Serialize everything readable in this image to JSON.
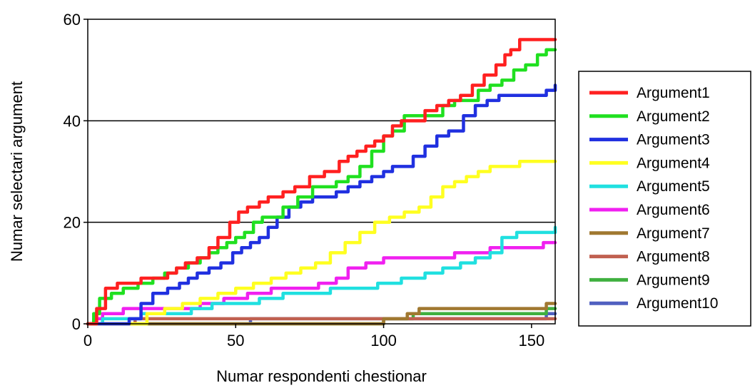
{
  "chart_data": {
    "type": "line",
    "xlabel": "Numar respondenti chestionar",
    "ylabel": "Numar selectari argument",
    "xlim": [
      0,
      158
    ],
    "ylim": [
      0,
      60
    ],
    "xticks": [
      0,
      50,
      100,
      150
    ],
    "yticks": [
      0,
      20,
      40,
      60
    ],
    "grid": "horizontal",
    "legend_position": "right",
    "series": [
      {
        "name": "Argument1",
        "color": "#ff2020",
        "x": [
          0,
          3,
          6,
          10,
          13,
          18,
          25,
          27,
          30,
          33,
          37,
          41,
          44,
          48,
          51,
          54,
          58,
          61,
          66,
          70,
          75,
          80,
          85,
          88,
          91,
          94,
          97,
          100,
          103,
          106,
          110,
          114,
          118,
          122,
          126,
          130,
          134,
          138,
          141,
          143,
          146,
          158
        ],
        "y": [
          0,
          3,
          7,
          8,
          8,
          9,
          9,
          10,
          11,
          12,
          13,
          15,
          17,
          20,
          22,
          23,
          24,
          25,
          26,
          27,
          29,
          30,
          32,
          33,
          34,
          35,
          36,
          37,
          39,
          40,
          40,
          42,
          43,
          44,
          45,
          47,
          49,
          51,
          53,
          54,
          56,
          56
        ]
      },
      {
        "name": "Argument2",
        "color": "#20e020",
        "x": [
          0,
          2,
          4,
          8,
          12,
          17,
          22,
          26,
          30,
          34,
          38,
          41,
          44,
          47,
          50,
          53,
          56,
          59,
          62,
          66,
          71,
          76,
          80,
          84,
          88,
          92,
          96,
          100,
          103,
          107,
          112,
          116,
          120,
          124,
          128,
          132,
          136,
          140,
          144,
          148,
          152,
          155,
          158
        ],
        "y": [
          0,
          2,
          5,
          6,
          7,
          8,
          9,
          10,
          11,
          12,
          13,
          14,
          15,
          16,
          17,
          18,
          20,
          21,
          21,
          23,
          25,
          27,
          27,
          28,
          29,
          31,
          34,
          37,
          38,
          41,
          41,
          41,
          43,
          44,
          44,
          46,
          47,
          48,
          50,
          51,
          53,
          54,
          54
        ]
      },
      {
        "name": "Argument3",
        "color": "#2030e0",
        "x": [
          0,
          10,
          14,
          18,
          22,
          27,
          31,
          34,
          37,
          41,
          45,
          49,
          52,
          55,
          58,
          61,
          64,
          68,
          72,
          76,
          80,
          84,
          88,
          92,
          96,
          100,
          103,
          106,
          110,
          114,
          118,
          122,
          127,
          131,
          135,
          139,
          143,
          147,
          151,
          155,
          158
        ],
        "y": [
          0,
          0,
          1,
          4,
          6,
          7,
          8,
          9,
          10,
          11,
          12,
          14,
          15,
          16,
          17,
          19,
          21,
          23,
          24,
          25,
          25,
          26,
          27,
          28,
          29,
          30,
          31,
          31,
          33,
          35,
          37,
          38,
          41,
          43,
          44,
          45,
          45,
          45,
          45,
          46,
          47
        ]
      },
      {
        "name": "Argument4",
        "color": "#ffff20",
        "x": [
          0,
          10,
          20,
          26,
          32,
          38,
          44,
          50,
          56,
          62,
          67,
          72,
          77,
          82,
          87,
          92,
          97,
          102,
          107,
          112,
          116,
          120,
          124,
          128,
          132,
          136,
          140,
          146,
          152,
          158
        ],
        "y": [
          0,
          0,
          2,
          3,
          4,
          5,
          6,
          7,
          8,
          9,
          10,
          11,
          12,
          14,
          16,
          18,
          20,
          21,
          22,
          23,
          25,
          27,
          28,
          29,
          30,
          31,
          31,
          32,
          32,
          32
        ]
      },
      {
        "name": "Argument5",
        "color": "#20e0e0",
        "x": [
          0,
          5,
          10,
          18,
          26,
          35,
          42,
          50,
          58,
          66,
          74,
          82,
          90,
          98,
          106,
          114,
          120,
          126,
          131,
          136,
          140,
          145,
          150,
          155,
          158
        ],
        "y": [
          0,
          1,
          1,
          2,
          2,
          3,
          4,
          4,
          5,
          6,
          6,
          7,
          7,
          8,
          9,
          10,
          11,
          12,
          13,
          14,
          17,
          18,
          18,
          18,
          19
        ]
      },
      {
        "name": "Argument6",
        "color": "#f020f0",
        "x": [
          0,
          2,
          5,
          12,
          20,
          30,
          38,
          46,
          54,
          62,
          70,
          78,
          84,
          88,
          94,
          100,
          106,
          112,
          118,
          124,
          130,
          136,
          142,
          148,
          154,
          158
        ],
        "y": [
          0,
          1,
          2,
          3,
          3,
          3,
          4,
          5,
          6,
          7,
          7,
          8,
          9,
          11,
          12,
          13,
          13,
          13,
          13,
          14,
          14,
          15,
          15,
          15,
          16,
          16
        ]
      },
      {
        "name": "Argument7",
        "color": "#a07830",
        "x": [
          0,
          20,
          50,
          80,
          100,
          108,
          112,
          130,
          150,
          155,
          158
        ],
        "y": [
          0,
          0,
          0,
          0,
          1,
          2,
          3,
          3,
          3,
          4,
          4
        ]
      },
      {
        "name": "Argument8",
        "color": "#c06050",
        "x": [
          0,
          16,
          40,
          60,
          80,
          100,
          120,
          140,
          158
        ],
        "y": [
          0,
          1,
          1,
          1,
          1,
          1,
          1,
          1,
          1
        ]
      },
      {
        "name": "Argument9",
        "color": "#40b040",
        "x": [
          0,
          60,
          80,
          100,
          110,
          130,
          150,
          155,
          158
        ],
        "y": [
          0,
          0,
          0,
          1,
          2,
          2,
          2,
          3,
          3
        ]
      },
      {
        "name": "Argument10",
        "color": "#5060c0",
        "x": [
          0,
          50,
          55,
          80,
          100,
          130,
          150,
          155,
          158
        ],
        "y": [
          0,
          0,
          1,
          1,
          1,
          1,
          1,
          2,
          2
        ]
      }
    ]
  }
}
